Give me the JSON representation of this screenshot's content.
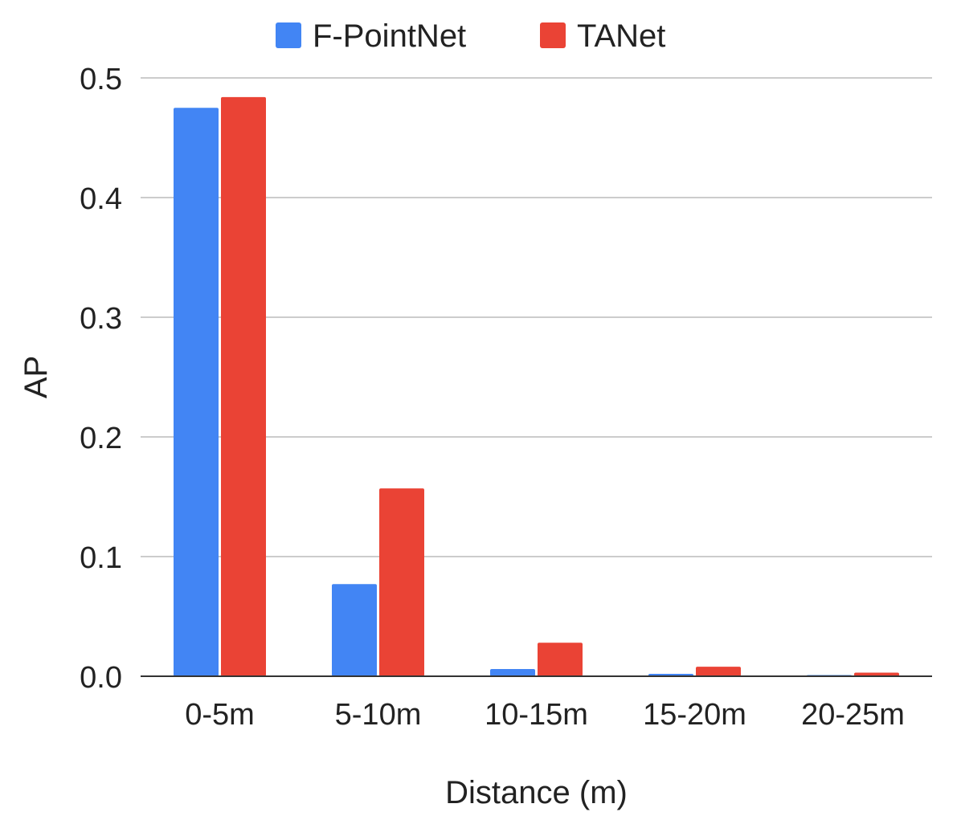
{
  "chart_data": {
    "type": "bar",
    "title": "",
    "xlabel": "Distance (m)",
    "ylabel": "AP",
    "categories": [
      "0-5m",
      "5-10m",
      "10-15m",
      "15-20m",
      "20-25m"
    ],
    "series": [
      {
        "name": "F-PointNet",
        "color": "#4285f4",
        "values": [
          0.475,
          0.077,
          0.006,
          0.002,
          0.001
        ]
      },
      {
        "name": "TANet",
        "color": "#ea4335",
        "values": [
          0.484,
          0.157,
          0.028,
          0.008,
          0.003
        ]
      }
    ],
    "ylim": [
      0,
      0.5
    ],
    "yticks": [
      "0.0",
      "0.1",
      "0.2",
      "0.3",
      "0.4",
      "0.5"
    ],
    "grid": true,
    "legend_position": "top"
  }
}
